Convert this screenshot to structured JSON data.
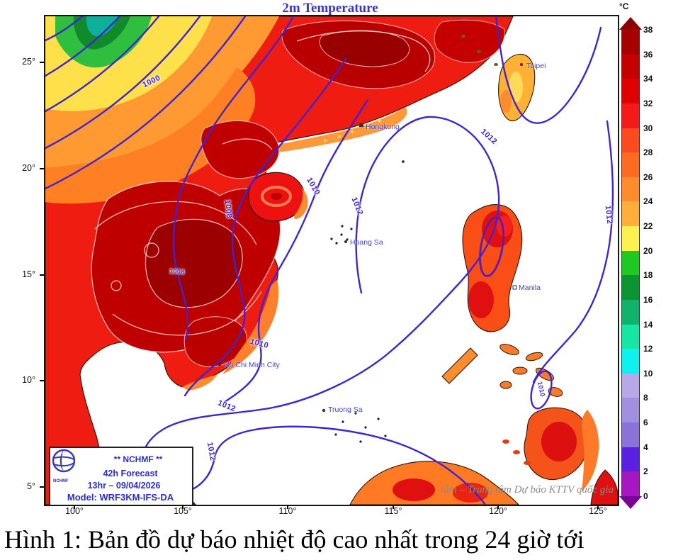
{
  "title": "2m Temperature",
  "unit_label": "°C",
  "caption": "Hình 1: Bản đồ dự báo nhiệt độ cao nhất trong 24 giờ tới",
  "watermark": "tâm – Trung tâm Dự báo KTTV quốc gia",
  "info_box": {
    "agency": "** NCHMF **",
    "forecast": "42h Forecast",
    "valid_time": "13hr – 09/04/2026",
    "model": "Model: WRF3KM-IFS-DA",
    "logo_text": "NCHMF"
  },
  "axes": {
    "lat": [
      "25°",
      "20°",
      "15°",
      "10°",
      "5°"
    ],
    "lon": [
      "100°",
      "105°",
      "110°",
      "115°",
      "120°",
      "125°"
    ]
  },
  "colorbar": {
    "unit": "°C",
    "ticks_top_to_bottom": [
      38,
      36,
      34,
      32,
      30,
      28,
      26,
      24,
      22,
      20,
      18,
      16,
      14,
      12,
      10,
      8,
      6,
      4,
      2,
      0
    ],
    "colors_top_to_bottom": [
      "#a80000",
      "#c40000",
      "#e00000",
      "#f51919",
      "#fb4b1e",
      "#fd6a22",
      "#fe8c2d",
      "#ffae3a",
      "#fdf14f",
      "#1fc823",
      "#0b9431",
      "#11b36b",
      "#15e6a4",
      "#0ff0f0",
      "#b7a8e8",
      "#a18fe0",
      "#8a72d6",
      "#5a1fe0",
      "#a816c4"
    ],
    "arrow_top_color": "#8c0000",
    "arrow_bottom_color": "#7a0096"
  },
  "places": {
    "hongkong": "Hongkong",
    "taipei": "Taipei",
    "hoang_sa": "Hoang Sa",
    "truong_sa": "Truong Sa",
    "ho_chi_minh_city": "Ho Chi Minh City",
    "manila": "Manila"
  },
  "isobars": {
    "i1000": "1000",
    "i1008": "1008",
    "i1010": "1010",
    "i1012": "1012"
  },
  "colors": {
    "isobar": "#4023d2",
    "isobar_dark": "#5a1cb5",
    "title_blue": "#3a35c6",
    "label_blue": "#4343cf",
    "info_blue": "#2b2bd5",
    "watermark_gray": "#8a8a8a",
    "land_base_red": "#ef1c12",
    "sea": "#ffffff"
  }
}
